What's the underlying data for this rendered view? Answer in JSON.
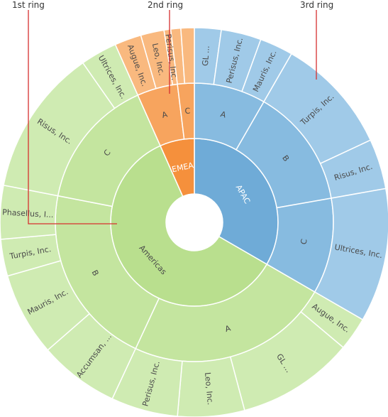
{
  "chart_data": {
    "type": "sunburst",
    "ring_captions": [
      "1st ring",
      "2nd ring",
      "3rd ring"
    ],
    "colors": {
      "Americas": [
        "#b9df8e",
        "#c4e59f",
        "#cfebb2"
      ],
      "EMEA": [
        "#f5903c",
        "#f7a45e",
        "#f9b97f"
      ],
      "APAC": [
        "#6fabd7",
        "#87bbe0",
        "#a0cae8"
      ]
    },
    "hierarchy": [
      {
        "name": "APAC",
        "value": 120,
        "children": [
          {
            "name": "A",
            "value": 30,
            "children": [
              {
                "name": "GL ...",
                "value": 8
              },
              {
                "name": "Perisus, Inc.",
                "value": 12
              },
              {
                "name": "Mauris, Inc.",
                "value": 10
              }
            ]
          },
          {
            "name": "B",
            "value": 50,
            "children": [
              {
                "name": "Turpis, Inc.",
                "value": 35
              },
              {
                "name": "Risus, Inc.",
                "value": 15
              }
            ]
          },
          {
            "name": "C",
            "value": 40,
            "children": [
              {
                "name": "Ultrices, Inc.",
                "value": 40
              }
            ]
          }
        ]
      },
      {
        "name": "Americas",
        "value": 216,
        "children": [
          {
            "name": "A",
            "value": 85,
            "children": [
              {
                "name": "Augue, Inc.",
                "value": 10
              },
              {
                "name": "GL ...",
                "value": 35
              },
              {
                "name": "Leo, Inc.",
                "value": 20
              },
              {
                "name": "Perisus, Inc.",
                "value": 20
              }
            ]
          },
          {
            "name": "B",
            "value": 76,
            "children": [
              {
                "name": "Accumsan, ...",
                "value": 24
              },
              {
                "name": "Mauris, Inc.",
                "value": 25
              },
              {
                "name": "Turpis, Inc.",
                "value": 11
              },
              {
                "name": "Phasellus, I...",
                "value": 16
              }
            ]
          },
          {
            "name": "C",
            "value": 55,
            "children": [
              {
                "name": "Risus, Inc.",
                "value": 44
              },
              {
                "name": "Ultrices, Inc.",
                "value": 11
              }
            ]
          }
        ]
      },
      {
        "name": "EMEA",
        "value": 24,
        "children": [
          {
            "name": "A",
            "value": 17,
            "children": [
              {
                "name": "Augue, Inc.",
                "value": 8
              },
              {
                "name": "Leo, Inc.",
                "value": 7
              },
              {
                "name": "Perisus, Inc.",
                "value": 2
              }
            ]
          },
          {
            "name": "C",
            "value": 7,
            "children": [
              {
                "name": "",
                "value": 3
              },
              {
                "name": "",
                "value": 4
              }
            ]
          }
        ]
      }
    ]
  }
}
